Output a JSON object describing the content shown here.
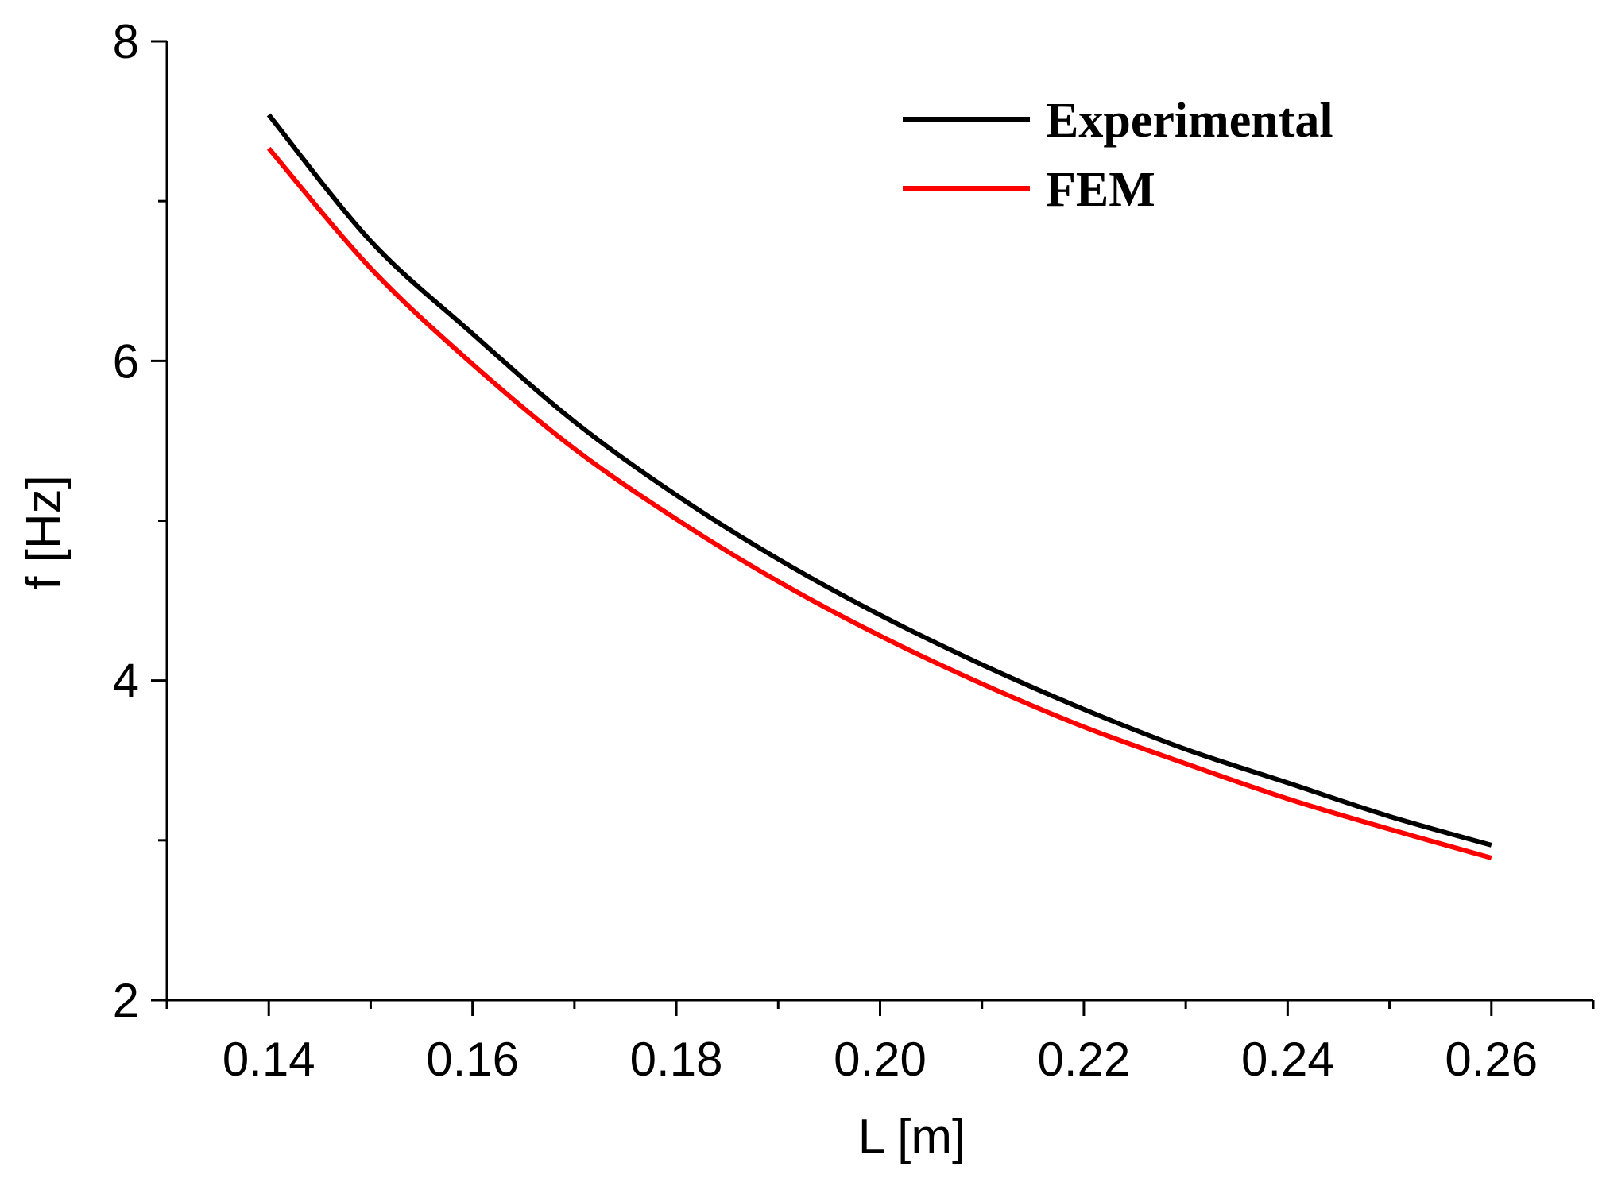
{
  "chart_data": {
    "type": "line",
    "title": "",
    "xlabel": "L [m]",
    "ylabel": "f [Hz]",
    "xlim": [
      0.13,
      0.27
    ],
    "ylim": [
      2,
      8
    ],
    "xticks": [
      0.14,
      0.16,
      0.18,
      0.2,
      0.22,
      0.24,
      0.26
    ],
    "xtick_labels": [
      "0.14",
      "0.16",
      "0.18",
      "0.20",
      "0.22",
      "0.24",
      "0.26"
    ],
    "yticks": [
      2,
      4,
      6,
      8
    ],
    "ytick_labels": [
      "2",
      "4",
      "6",
      "8"
    ],
    "x": [
      0.14,
      0.15,
      0.16,
      0.17,
      0.18,
      0.19,
      0.2,
      0.21,
      0.22,
      0.23,
      0.24,
      0.25,
      0.26
    ],
    "series": [
      {
        "name": "Experimental",
        "color": "#000000",
        "values": [
          7.54,
          6.75,
          6.17,
          5.62,
          5.16,
          4.76,
          4.41,
          4.1,
          3.82,
          3.57,
          3.36,
          3.15,
          2.97
        ]
      },
      {
        "name": "FEM",
        "color": "#ff0000",
        "values": [
          7.33,
          6.58,
          5.98,
          5.45,
          5.01,
          4.62,
          4.28,
          3.98,
          3.71,
          3.48,
          3.26,
          3.07,
          2.89
        ]
      }
    ],
    "legend_position": "top-right",
    "grid": false
  }
}
